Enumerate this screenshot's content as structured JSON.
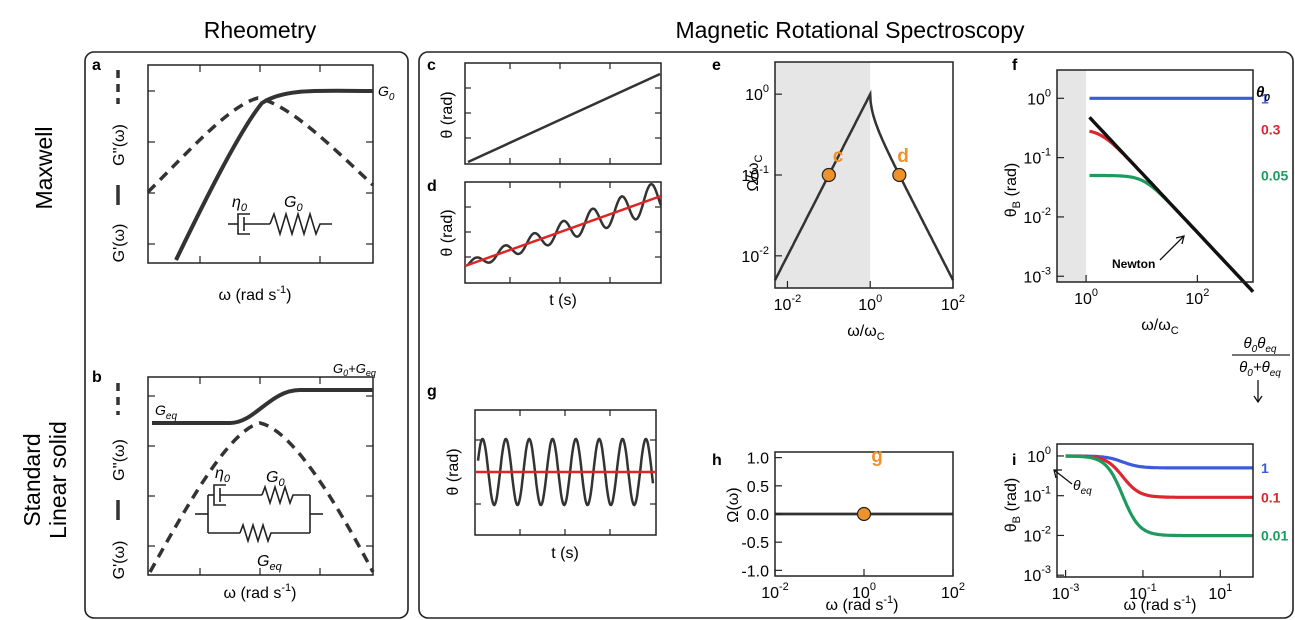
{
  "header": {
    "rheometry": "Rheometry",
    "mrs": "Magnetic Rotational Spectroscopy"
  },
  "rows": {
    "maxwell": "Maxwell",
    "sls_line1": "Standard",
    "sls_line2": "Linear solid"
  },
  "colors": {
    "curve": "#333333",
    "accent_red": "#dc2626",
    "blue": "#3b5bdb",
    "red": "#dc2630",
    "green": "#1f9a5e",
    "orange": "#f0922b",
    "shade": "#e6e6e6"
  },
  "panels": {
    "a": {
      "letter": "a",
      "ylabel_loss": "G''(ω)",
      "ylabel_storage": "G'(ω)",
      "xlabel": "ω (rad s",
      "xlabel_sup": "-1",
      "xlabel_end": ")",
      "g0": "G",
      "g0_sub": "0",
      "eta0": "η",
      "eta0_sub": "0",
      "spring": "G",
      "spring_sub": "0"
    },
    "b": {
      "letter": "b",
      "ylabel_loss": "G''(ω)",
      "ylabel_storage": "G'(ω)",
      "xlabel": "ω (rad s",
      "xlabel_sup": "-1",
      "xlabel_end": ")",
      "geq": "G",
      "geq_sub": "eq",
      "top": "G",
      "top_sub1": "0",
      "top_plus": "+G",
      "top_sub2": "eq",
      "eta0": "η",
      "eta0_sub": "0",
      "spring_g0": "G",
      "spring_g0_sub": "0",
      "spring_geq": "G",
      "spring_geq_sub": "eq"
    },
    "c": {
      "letter": "c",
      "ylabel": "θ (rad)"
    },
    "d": {
      "letter": "d",
      "ylabel": "θ (rad)",
      "xlabel": "t (s)"
    },
    "e": {
      "letter": "e",
      "ylabel": "Ω/ω",
      "ylabel_sub": "C",
      "xlabel": "ω/ω",
      "xlabel_sub": "C",
      "point_c": "c",
      "point_d": "d"
    },
    "f": {
      "letter": "f",
      "ylabel": "θ",
      "ylabel_sub": "B",
      "ylabel_end": " (rad)",
      "xlabel": "ω/ω",
      "xlabel_sub": "C",
      "legend_title": "θ",
      "legend_title_sub": "0",
      "newton": "Newton"
    },
    "g": {
      "letter": "g",
      "ylabel": "θ (rad)",
      "xlabel": "t (s)"
    },
    "h": {
      "letter": "h",
      "ylabel": "Ω(ω)",
      "xlabel": "ω (rad s",
      "xlabel_sup": "-1",
      "xlabel_end": ")",
      "point_g": "g"
    },
    "i": {
      "letter": "i",
      "ylabel": "θ",
      "ylabel_sub": "B",
      "ylabel_end": " (rad)",
      "xlabel": "ω (rad s",
      "xlabel_sup": "-1",
      "xlabel_end": ")",
      "theta_eq": "θ",
      "theta_eq_sub": "eq",
      "frac_num": "θ",
      "frac_num_s1": "0",
      "frac_num_mid": "θ",
      "frac_num_s2": "eq",
      "frac_den": "θ",
      "frac_den_s1": "0",
      "frac_den_mid": "+θ",
      "frac_den_s2": "eq"
    }
  },
  "chart_data": [
    {
      "panel": "e",
      "type": "line",
      "log_x": true,
      "log_y": true,
      "xlim": [
        0.005,
        100
      ],
      "ylim": [
        0.004,
        2.5
      ],
      "xticks": [
        {
          "base": "10",
          "exp": "-2"
        },
        {
          "base": "10",
          "exp": "0"
        },
        {
          "base": "10",
          "exp": "2"
        }
      ],
      "yticks": [
        {
          "base": "10",
          "exp": "-2"
        },
        {
          "base": "10",
          "exp": "-1"
        },
        {
          "base": "10",
          "exp": "0"
        }
      ],
      "shaded_region_x": [
        0.005,
        1
      ]
    },
    {
      "panel": "f",
      "type": "line",
      "log_x": true,
      "log_y": true,
      "xlim": [
        0.3,
        1000
      ],
      "ylim": [
        0.0008,
        3
      ],
      "xticks": [
        {
          "base": "10",
          "exp": "0"
        },
        {
          "base": "10",
          "exp": "2"
        }
      ],
      "yticks": [
        {
          "base": "10",
          "exp": "-3"
        },
        {
          "base": "10",
          "exp": "-2"
        },
        {
          "base": "10",
          "exp": "-1"
        },
        {
          "base": "10",
          "exp": "0"
        }
      ],
      "shaded_region_x": [
        0.3,
        1
      ],
      "series": [
        {
          "name": "1",
          "value": 1
        },
        {
          "name": "0.3",
          "value": 0.3
        },
        {
          "name": "0.05",
          "value": 0.05
        }
      ]
    },
    {
      "panel": "h",
      "type": "line",
      "log_x": true,
      "xlim": [
        0.01,
        100
      ],
      "ylim": [
        -1.1,
        1.1
      ],
      "xticks": [
        {
          "base": "10",
          "exp": "-2"
        },
        {
          "base": "10",
          "exp": "0"
        },
        {
          "base": "10",
          "exp": "2"
        }
      ],
      "yticks": [
        "-1.0",
        "-0.5",
        "0.0",
        "0.5",
        "1.0"
      ],
      "x": [
        0.01,
        100
      ],
      "y": [
        0,
        0
      ]
    },
    {
      "panel": "i",
      "type": "line",
      "log_x": true,
      "log_y": true,
      "xlim": [
        0.0006,
        70
      ],
      "ylim": [
        0.0009,
        2
      ],
      "xticks": [
        {
          "base": "10",
          "exp": "-3"
        },
        {
          "base": "10",
          "exp": "-1"
        },
        {
          "base": "10",
          "exp": "1"
        }
      ],
      "yticks": [
        {
          "base": "10",
          "exp": "-3"
        },
        {
          "base": "10",
          "exp": "-2"
        },
        {
          "base": "10",
          "exp": "-1"
        },
        {
          "base": "10",
          "exp": "0"
        }
      ],
      "series": [
        {
          "name": "1",
          "plateau": 0.5
        },
        {
          "name": "0.1",
          "plateau": 0.091
        },
        {
          "name": "0.01",
          "plateau": 0.0099
        }
      ]
    }
  ]
}
